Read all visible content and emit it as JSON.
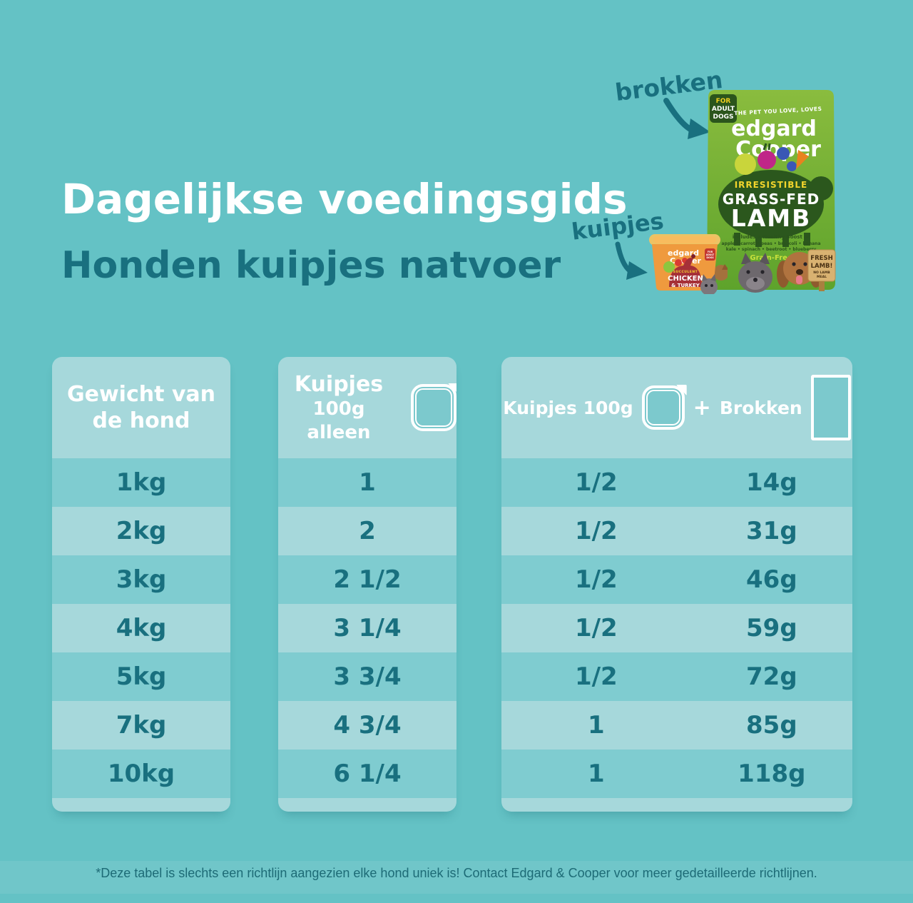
{
  "header": {
    "title": "Dagelijkse voedingsgids",
    "subtitle": "Honden kuipjes natvoer"
  },
  "callouts": {
    "brokken": "brokken",
    "kuipjes": "kuipjes"
  },
  "product_bag": {
    "badge_line1": "FOR",
    "badge_line2": "ADULT",
    "badge_line3": "DOGS",
    "tagline": "THE PET YOU LOVE, LOVES",
    "brand_line1": "edgard",
    "brand_line2": "Cooper",
    "flavor_kicker": "IRRESISTIBLE",
    "flavor_line1": "GRASS-FED",
    "flavor_line2": "LAMB",
    "boost_intro": "includes a Healthy Boost of",
    "boost_line1": "apple • carrot • peas • broccoli • banana",
    "boost_line2": "kale • spinach • beetroot • blueberry",
    "grain_free": "Grain-Free",
    "sign_line1": "FRESH",
    "sign_line2": "LAMB!",
    "sign_line3": "NO LAMB",
    "sign_line4": "MEAL"
  },
  "product_tray": {
    "brand_line1": "edgard",
    "brand_line2": "Cooper",
    "badge_line1": "FOR",
    "badge_line2": "ADULT",
    "badge_line3": "DOGS",
    "kicker": "SUCCULENT",
    "flavor_line1": "CHICKEN",
    "flavor_line2": "& TURKEY"
  },
  "feeding_table": {
    "headers": {
      "weight": [
        "Gewicht van",
        "de hond"
      ],
      "alone": [
        "Kuipjes",
        "100g alleen"
      ],
      "combo": {
        "left": "Kuipjes 100g",
        "plus": "+",
        "right": "Brokken"
      }
    },
    "rows": [
      {
        "weight": "1kg",
        "kuipjes_alone": "1",
        "kuipjes_combo": "1/2",
        "brokken": "14g"
      },
      {
        "weight": "2kg",
        "kuipjes_alone": "2",
        "kuipjes_combo": "1/2",
        "brokken": "31g"
      },
      {
        "weight": "3kg",
        "kuipjes_alone": "2 1/2",
        "kuipjes_combo": "1/2",
        "brokken": "46g"
      },
      {
        "weight": "4kg",
        "kuipjes_alone": "3 1/4",
        "kuipjes_combo": "1/2",
        "brokken": "59g"
      },
      {
        "weight": "5kg",
        "kuipjes_alone": "3 3/4",
        "kuipjes_combo": "1/2",
        "brokken": "72g"
      },
      {
        "weight": "7kg",
        "kuipjes_alone": "4 3/4",
        "kuipjes_combo": "1",
        "brokken": "85g"
      },
      {
        "weight": "10kg",
        "kuipjes_alone": "6 1/4",
        "kuipjes_combo": "1",
        "brokken": "118g"
      }
    ]
  },
  "footer": {
    "note": "*Deze tabel is slechts een richtlijn aangezien elke hond uniek is! Contact Edgard & Cooper voor meer gedetailleerde richtlijnen."
  },
  "colors": {
    "background": "#64c2c5",
    "panel_light": "#a6d8db",
    "row_dark": "#7fccd0",
    "text_teal": "#19707f",
    "bag_green": "#76b236",
    "tray_orange": "#ef9a3e",
    "accent_yellow": "#f3d52c",
    "white": "#ffffff"
  }
}
